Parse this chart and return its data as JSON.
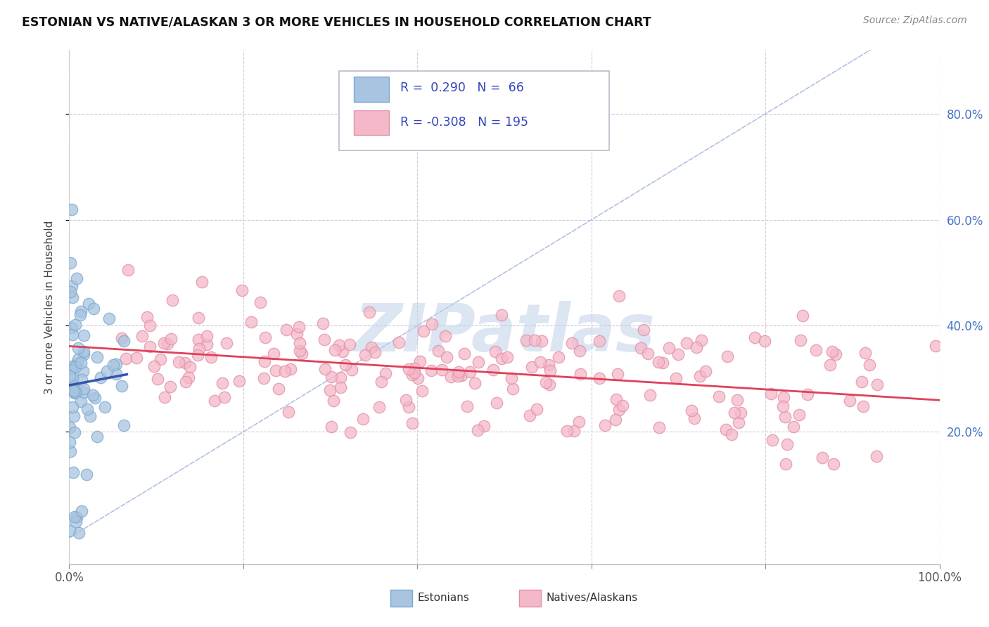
{
  "title": "ESTONIAN VS NATIVE/ALASKAN 3 OR MORE VEHICLES IN HOUSEHOLD CORRELATION CHART",
  "source": "Source: ZipAtlas.com",
  "ylabel": "3 or more Vehicles in Household",
  "right_yticks": [
    "20.0%",
    "40.0%",
    "60.0%",
    "80.0%"
  ],
  "right_ytick_vals": [
    0.2,
    0.4,
    0.6,
    0.8
  ],
  "R_estonian": 0.29,
  "N_estonian": 66,
  "R_native": -0.308,
  "N_native": 195,
  "estonian_color": "#a8c4e0",
  "estonian_edge_color": "#7aaad0",
  "estonian_line_color": "#3355aa",
  "native_color": "#f5b8c8",
  "native_edge_color": "#e090a8",
  "native_line_color": "#e0405a",
  "diag_color": "#aabbdd",
  "watermark_text": "ZIPatlas",
  "watermark_color": "#c0d0e8",
  "background_color": "#ffffff",
  "legend_text_color": "#3344bb",
  "seed_estonian": 42,
  "seed_native": 99,
  "xlim": [
    0.0,
    1.0
  ],
  "ylim": [
    -0.05,
    0.92
  ],
  "xtick_vals": [
    0.0,
    0.2,
    0.4,
    0.6,
    0.8,
    1.0
  ],
  "xtick_labels": [
    "0.0%",
    "",
    "",
    "",
    "",
    "100.0%"
  ]
}
